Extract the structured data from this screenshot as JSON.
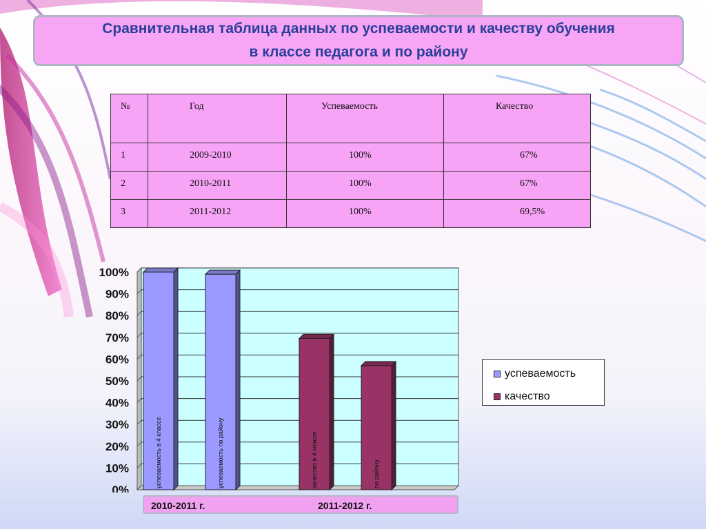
{
  "title": {
    "line1": "Сравнительная таблица данных по успеваемости и качеству обучения",
    "line2": "в классе педагога и по району"
  },
  "table": {
    "headers": [
      "№",
      "Год",
      "Успеваемость",
      "Качество"
    ],
    "rows": [
      [
        "1",
        "2009-2010",
        "100%",
        "67%"
      ],
      [
        "2",
        "2010-2011",
        "100%",
        "67%"
      ],
      [
        "3",
        "2011-2012",
        "100%",
        "69,5%"
      ]
    ]
  },
  "chart_data": {
    "type": "bar",
    "categories": [
      "2010-2011 г.",
      "2011-2012 г."
    ],
    "ylim": [
      0,
      100
    ],
    "yticks": [
      "0%",
      "10%",
      "20%",
      "30%",
      "40%",
      "50%",
      "60%",
      "70%",
      "80%",
      "90%",
      "100%"
    ],
    "grid": true,
    "legend_position": "right",
    "bars": [
      {
        "label": "успеваемость в 4 классе",
        "value": 100,
        "series": "успеваемость"
      },
      {
        "label": "успеваемость по району",
        "value": 99,
        "series": "успеваемость"
      },
      {
        "label": "качество в 4 классе",
        "value": 69.5,
        "series": "качество"
      },
      {
        "label": "по району",
        "value": 57,
        "series": "качество"
      }
    ],
    "series": [
      {
        "name": "успеваемость",
        "color": "#9999ff"
      },
      {
        "name": "качество",
        "color": "#993366"
      }
    ],
    "plot_background": "#ccffff"
  }
}
